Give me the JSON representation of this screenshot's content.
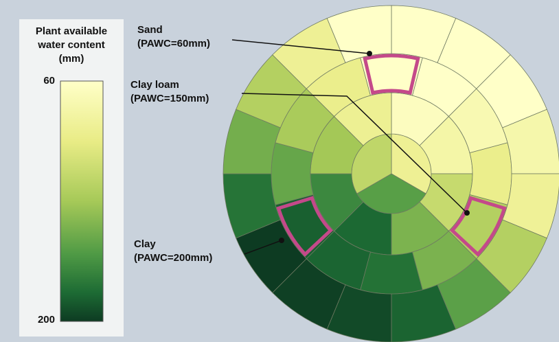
{
  "legend": {
    "title_lines": [
      "Plant available",
      "water content",
      "(mm)"
    ],
    "top_label": "60",
    "bottom_label": "200"
  },
  "annotations": [
    {
      "name": "Sand",
      "detail": "(PAWC=60mm)"
    },
    {
      "name": "Clay loam",
      "detail": "(PAWC=150mm)"
    },
    {
      "name": "Clay",
      "detail": "(PAWC=200mm)"
    }
  ]
}
